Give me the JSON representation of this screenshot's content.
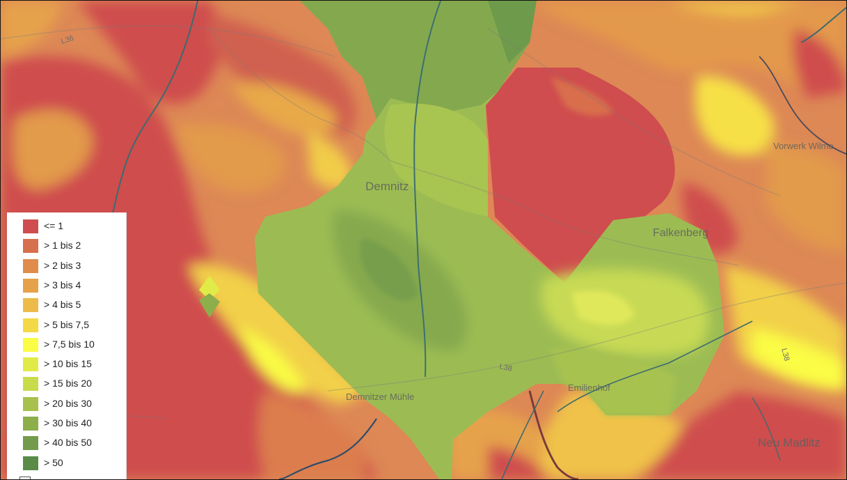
{
  "map": {
    "places": {
      "demnitz": "Demnitz",
      "falkenberg": "Falkenberg",
      "vorwerk": "Vorwerk Wilme",
      "emilienhof": "Emilienhof",
      "demnitzer_muehle": "Demnitzer Mühle",
      "neu_madlitz": "Neu Madlitz"
    },
    "roads": {
      "l36": "L36",
      "l38": "L38",
      "l38_east": "L38"
    }
  },
  "legend": {
    "items": [
      {
        "label": "<= 1",
        "color": "#cf4d4e"
      },
      {
        "label": "> 1 bis 2",
        "color": "#d7704c"
      },
      {
        "label": "> 2 bis 3",
        "color": "#df8c4c"
      },
      {
        "label": "> 3 bis 4",
        "color": "#e6a24b"
      },
      {
        "label": "> 4 bis 5",
        "color": "#edbb49"
      },
      {
        "label": "> 5 bis 7,5",
        "color": "#f4d946"
      },
      {
        "label": "> 7,5 bis 10",
        "color": "#fafc45"
      },
      {
        "label": "> 10 bis 15",
        "color": "#e1eb47"
      },
      {
        "label": "> 15 bis 20",
        "color": "#c8dc4b"
      },
      {
        "label": "> 20 bis 30",
        "color": "#a8c04c"
      },
      {
        "label": "> 30 bis 40",
        "color": "#8cae4b"
      },
      {
        "label": "> 40 bis 50",
        "color": "#739b4b"
      },
      {
        "label": "> 50",
        "color": "#5a8c48"
      }
    ]
  }
}
